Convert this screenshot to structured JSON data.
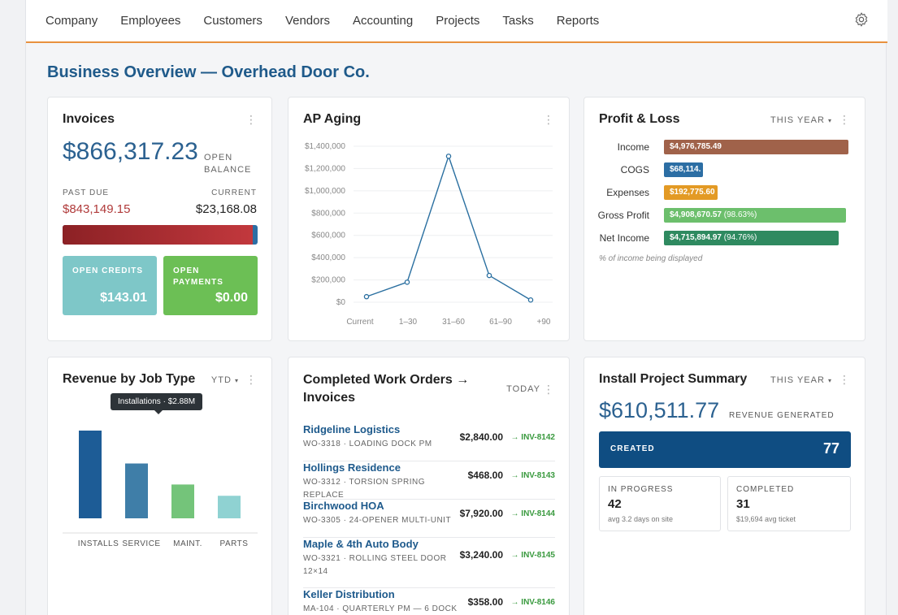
{
  "nav": {
    "items": [
      "Company",
      "Employees",
      "Customers",
      "Vendors",
      "Accounting",
      "Projects",
      "Tasks",
      "Reports"
    ],
    "settings_icon": "gear-icon"
  },
  "page_title": "Business Overview — Overhead Door Co.",
  "invoices": {
    "title": "Invoices",
    "open_balance": "$866,317.23",
    "open_balance_label": "OPEN BALANCE",
    "past_due_label": "PAST DUE",
    "past_due": "$843,149.15",
    "current_label": "CURRENT",
    "current": "$23,168.08",
    "past_due_fraction": 0.973,
    "open_credits_label": "OPEN CREDITS",
    "open_credits": "$143.01",
    "open_payments_label": "OPEN PAYMENTS",
    "open_payments": "$0.00",
    "colors": {
      "past_due": "#b03a3a",
      "current": "#2c6ea4",
      "credits": "#7ec7c8",
      "payments": "#6cbf55"
    }
  },
  "ap_aging": {
    "title": "AP Aging",
    "chart_data": {
      "type": "line",
      "categories": [
        "Current",
        "1–30",
        "31–60",
        "61–90",
        "+90"
      ],
      "values": [
        50000,
        180000,
        1310000,
        240000,
        20000
      ],
      "y_ticks": [
        "$1,400,000",
        "$1,200,000",
        "$1,000,000",
        "$800,000",
        "$600,000",
        "$400,000",
        "$200,000",
        "$0"
      ],
      "ylim": [
        0,
        1400000
      ],
      "grid": true,
      "color": "#2a6fa0"
    }
  },
  "profit_loss": {
    "title": "Profit & Loss",
    "period": "THIS YEAR",
    "rows": [
      {
        "label": "Income",
        "value": "$4,976,785.49",
        "pct": "",
        "fraction": 1.0,
        "color": "#a0624a"
      },
      {
        "label": "COGS",
        "value": "$68,114.",
        "pct": "",
        "fraction": 0.21,
        "color": "#2c6ea4"
      },
      {
        "label": "Expenses",
        "value": "$192,775.60",
        "pct": "",
        "fraction": 0.29,
        "color": "#e39a24"
      },
      {
        "label": "Gross Profit",
        "value": "$4,908,670.57",
        "pct": "(98.63%)",
        "fraction": 0.986,
        "color": "#6cbf6c"
      },
      {
        "label": "Net Income",
        "value": "$4,715,894.97",
        "pct": "(94.76%)",
        "fraction": 0.948,
        "color": "#2f8a60"
      }
    ],
    "note": "% of income being displayed"
  },
  "revenue_by_job": {
    "title": "Revenue by Job Type",
    "period": "YTD",
    "tooltip": "Installations · $2.88M",
    "chart_data": {
      "type": "bar",
      "categories": [
        "INSTALLS",
        "SERVICE",
        "MAINT.",
        "PARTS"
      ],
      "values": [
        2.88,
        1.8,
        1.11,
        0.74
      ],
      "unit": "$M",
      "colors": [
        "#1d5c96",
        "#3f7ea8",
        "#74c47a",
        "#8fd2d2"
      ]
    }
  },
  "work_orders": {
    "title_line1": "Completed Work Orders →",
    "title_line2": "Invoices",
    "period": "TODAY",
    "rows": [
      {
        "name": "Ridgeline Logistics",
        "sub": "WO-3318 · LOADING DOCK PM",
        "amount": "$2,840.00",
        "invoice": "→ INV-8142"
      },
      {
        "name": "Hollings Residence",
        "sub": "WO-3312 · TORSION SPRING REPLACE",
        "amount": "$468.00",
        "invoice": "→ INV-8143"
      },
      {
        "name": "Birchwood HOA",
        "sub": "WO-3305 · 24-OPENER MULTI-UNIT",
        "amount": "$7,920.00",
        "invoice": "→ INV-8144"
      },
      {
        "name": "Maple & 4th Auto Body",
        "sub": "WO-3321 · ROLLING STEEL DOOR 12×14",
        "amount": "$3,240.00",
        "invoice": "→ INV-8145"
      },
      {
        "name": "Keller Distribution",
        "sub": "MA-104 · QUARTERLY PM — 6 DOCK",
        "amount": "$358.00",
        "invoice": "→ INV-8146"
      }
    ]
  },
  "install_summary": {
    "title": "Install Project Summary",
    "period": "THIS YEAR",
    "revenue": "$610,511.77",
    "revenue_label": "REVENUE GENERATED",
    "created_label": "CREATED",
    "created": "77",
    "in_progress_label": "IN PROGRESS",
    "in_progress": "42",
    "in_progress_note": "avg 3.2 days on site",
    "completed_label": "COMPLETED",
    "completed": "31",
    "completed_note": "$19,694 avg ticket"
  }
}
